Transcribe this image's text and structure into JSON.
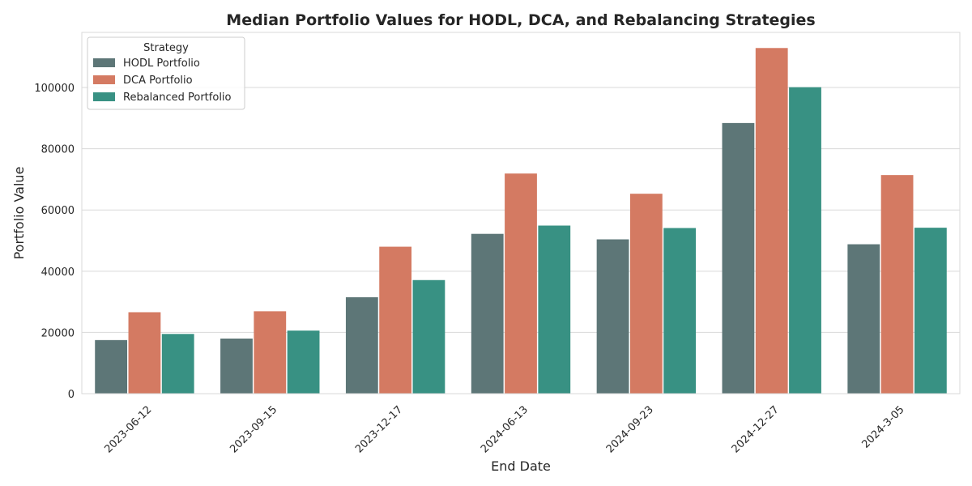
{
  "chart_data": {
    "type": "bar",
    "title": "Median Portfolio Values for HODL, DCA, and Rebalancing Strategies",
    "xlabel": "End Date",
    "ylabel": "Portfolio Value",
    "categories": [
      "2023-06-12",
      "2023-09-15",
      "2023-12-17",
      "2024-06-13",
      "2024-09-23",
      "2024-12-27",
      "2024-3-05"
    ],
    "series": [
      {
        "name": "HODL Portfolio",
        "color": "#5d7677",
        "values": [
          17500,
          18000,
          31500,
          52200,
          50400,
          88400,
          48800
        ]
      },
      {
        "name": "DCA Portfolio",
        "color": "#d47a62",
        "values": [
          26600,
          26900,
          48000,
          71900,
          65300,
          112900,
          71400
        ]
      },
      {
        "name": "Rebalanced Portfolio",
        "color": "#389183",
        "values": [
          19500,
          20600,
          37100,
          54900,
          54100,
          100100,
          54200
        ]
      }
    ],
    "ylim": [
      0,
      118000
    ],
    "yticks": [
      0,
      20000,
      40000,
      60000,
      80000,
      100000
    ],
    "grid": true,
    "legend": {
      "title": "Strategy",
      "placement": "top-left"
    }
  }
}
